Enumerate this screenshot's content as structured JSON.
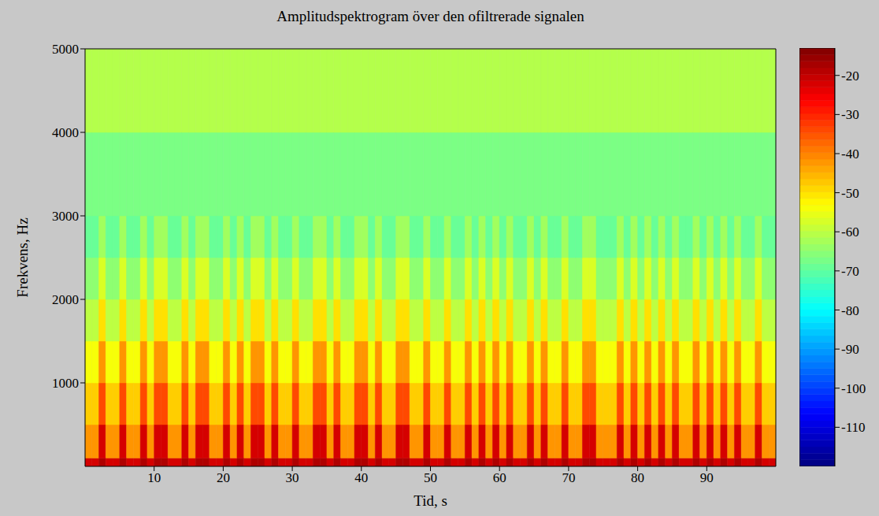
{
  "chart_data": {
    "type": "heatmap",
    "title": "Amplitudspektrogram över den ofiltrerade signalen",
    "x_label": "Tid, s",
    "y_label": "Frekvens, Hz",
    "xlim": [
      0,
      100
    ],
    "xticks": [
      10,
      20,
      30,
      40,
      50,
      60,
      70,
      80,
      90
    ],
    "ylim": [
      0,
      5000
    ],
    "yticks": [
      1000,
      2000,
      3000,
      4000,
      5000
    ],
    "grid": false,
    "x_bins": [
      0,
      1,
      2,
      3,
      4,
      5,
      6,
      7,
      8,
      9,
      10,
      11,
      12,
      13,
      14,
      15,
      16,
      17,
      18,
      19,
      20,
      21,
      22,
      23,
      24,
      25,
      26,
      27,
      28,
      29,
      30,
      31,
      32,
      33,
      34,
      35,
      36,
      37,
      38,
      39,
      40,
      41,
      42,
      43,
      44,
      45,
      46,
      47,
      48,
      49,
      50,
      51,
      52,
      53,
      54,
      55,
      56,
      57,
      58,
      59,
      60,
      61,
      62,
      63,
      64,
      65,
      66,
      67,
      68,
      69,
      70,
      71,
      72,
      73,
      74,
      75,
      76,
      77,
      78,
      79,
      80,
      81,
      82,
      83,
      84,
      85,
      86,
      87,
      88,
      89,
      90,
      91,
      92,
      93,
      94,
      95,
      96,
      97,
      98,
      99,
      100
    ],
    "y_bins": [
      0,
      100,
      500,
      1000,
      1500,
      2000,
      2500,
      3000,
      4000,
      5000
    ],
    "z": [
      [
        -22,
        -22,
        -18,
        -22,
        -22,
        -18,
        -22,
        -22,
        -18,
        -22,
        -18,
        -18,
        -22,
        -22,
        -18,
        -22,
        -18,
        -18,
        -22,
        -22,
        -18,
        -22,
        -18,
        -22,
        -18,
        -18,
        -22,
        -18,
        -22,
        -22,
        -18,
        -22,
        -22,
        -18,
        -18,
        -22,
        -18,
        -22,
        -22,
        -18,
        -18,
        -22,
        -18,
        -22,
        -22,
        -18,
        -18,
        -22,
        -22,
        -18,
        -22,
        -22,
        -18,
        -22,
        -22,
        -18,
        -22,
        -18,
        -22,
        -18,
        -22,
        -18,
        -22,
        -22,
        -18,
        -22,
        -18,
        -22,
        -22,
        -18,
        -22,
        -22,
        -18,
        -18,
        -22,
        -22,
        -22,
        -18,
        -22,
        -18,
        -22,
        -18,
        -22,
        -18,
        -22,
        -18,
        -22,
        -22,
        -18,
        -22,
        -18,
        -22,
        -18,
        -22,
        -18,
        -22,
        -22,
        -18,
        -22,
        -22
      ],
      [
        -42,
        -42,
        -22,
        -42,
        -42,
        -22,
        -42,
        -42,
        -22,
        -42,
        -22,
        -22,
        -42,
        -42,
        -22,
        -42,
        -22,
        -22,
        -42,
        -42,
        -22,
        -42,
        -22,
        -42,
        -22,
        -22,
        -42,
        -22,
        -42,
        -42,
        -22,
        -42,
        -42,
        -22,
        -22,
        -42,
        -22,
        -42,
        -42,
        -22,
        -22,
        -42,
        -22,
        -42,
        -42,
        -22,
        -22,
        -42,
        -42,
        -22,
        -42,
        -42,
        -22,
        -42,
        -42,
        -22,
        -42,
        -22,
        -42,
        -22,
        -42,
        -22,
        -42,
        -42,
        -22,
        -42,
        -22,
        -42,
        -42,
        -22,
        -42,
        -42,
        -22,
        -22,
        -42,
        -42,
        -42,
        -22,
        -42,
        -22,
        -42,
        -22,
        -42,
        -22,
        -42,
        -22,
        -42,
        -42,
        -22,
        -42,
        -22,
        -42,
        -22,
        -42,
        -22,
        -42,
        -42,
        -22,
        -42,
        -42
      ],
      [
        -48,
        -48,
        -34,
        -48,
        -48,
        -34,
        -48,
        -48,
        -34,
        -48,
        -34,
        -34,
        -48,
        -48,
        -34,
        -48,
        -34,
        -34,
        -48,
        -48,
        -34,
        -48,
        -34,
        -48,
        -34,
        -34,
        -48,
        -34,
        -48,
        -48,
        -34,
        -48,
        -48,
        -34,
        -34,
        -48,
        -34,
        -48,
        -48,
        -34,
        -34,
        -48,
        -34,
        -48,
        -48,
        -34,
        -34,
        -48,
        -48,
        -34,
        -48,
        -48,
        -34,
        -48,
        -48,
        -34,
        -48,
        -34,
        -48,
        -34,
        -48,
        -34,
        -48,
        -48,
        -34,
        -48,
        -34,
        -48,
        -48,
        -34,
        -48,
        -48,
        -34,
        -34,
        -48,
        -48,
        -48,
        -34,
        -48,
        -34,
        -48,
        -34,
        -48,
        -34,
        -48,
        -34,
        -48,
        -48,
        -34,
        -48,
        -34,
        -48,
        -34,
        -48,
        -34,
        -48,
        -48,
        -34,
        -48,
        -48
      ],
      [
        -54,
        -54,
        -42,
        -54,
        -54,
        -42,
        -54,
        -54,
        -42,
        -54,
        -42,
        -42,
        -54,
        -54,
        -42,
        -54,
        -42,
        -42,
        -54,
        -54,
        -42,
        -54,
        -42,
        -54,
        -42,
        -42,
        -54,
        -42,
        -54,
        -54,
        -42,
        -54,
        -54,
        -42,
        -42,
        -54,
        -42,
        -54,
        -54,
        -42,
        -42,
        -54,
        -42,
        -54,
        -54,
        -42,
        -42,
        -54,
        -54,
        -42,
        -54,
        -54,
        -42,
        -54,
        -54,
        -42,
        -54,
        -42,
        -54,
        -42,
        -54,
        -42,
        -54,
        -54,
        -42,
        -54,
        -42,
        -54,
        -54,
        -42,
        -54,
        -54,
        -42,
        -42,
        -54,
        -54,
        -54,
        -42,
        -54,
        -42,
        -54,
        -42,
        -54,
        -42,
        -54,
        -42,
        -54,
        -54,
        -42,
        -54,
        -42,
        -54,
        -42,
        -54,
        -42,
        -54,
        -54,
        -42,
        -54,
        -54
      ],
      [
        -60,
        -60,
        -50,
        -60,
        -60,
        -50,
        -60,
        -60,
        -50,
        -60,
        -50,
        -50,
        -60,
        -60,
        -50,
        -60,
        -50,
        -50,
        -60,
        -60,
        -50,
        -60,
        -50,
        -60,
        -50,
        -50,
        -60,
        -50,
        -60,
        -60,
        -50,
        -60,
        -60,
        -50,
        -50,
        -60,
        -50,
        -60,
        -60,
        -50,
        -50,
        -60,
        -50,
        -60,
        -60,
        -50,
        -50,
        -60,
        -60,
        -50,
        -60,
        -60,
        -50,
        -60,
        -60,
        -50,
        -60,
        -50,
        -60,
        -50,
        -60,
        -50,
        -60,
        -60,
        -50,
        -60,
        -50,
        -60,
        -60,
        -50,
        -60,
        -60,
        -50,
        -50,
        -60,
        -60,
        -60,
        -50,
        -60,
        -50,
        -60,
        -50,
        -60,
        -50,
        -60,
        -50,
        -60,
        -60,
        -50,
        -60,
        -50,
        -60,
        -50,
        -60,
        -50,
        -60,
        -60,
        -50,
        -60,
        -60
      ],
      [
        -65,
        -65,
        -57,
        -65,
        -65,
        -57,
        -65,
        -65,
        -57,
        -65,
        -57,
        -57,
        -65,
        -65,
        -57,
        -65,
        -57,
        -57,
        -65,
        -65,
        -57,
        -65,
        -57,
        -65,
        -57,
        -57,
        -65,
        -57,
        -65,
        -65,
        -57,
        -65,
        -65,
        -57,
        -57,
        -65,
        -57,
        -65,
        -65,
        -57,
        -57,
        -65,
        -57,
        -65,
        -65,
        -57,
        -57,
        -65,
        -65,
        -57,
        -65,
        -65,
        -57,
        -65,
        -65,
        -57,
        -65,
        -57,
        -65,
        -57,
        -65,
        -57,
        -65,
        -65,
        -57,
        -65,
        -57,
        -65,
        -65,
        -57,
        -65,
        -65,
        -57,
        -57,
        -65,
        -65,
        -65,
        -57,
        -65,
        -57,
        -65,
        -57,
        -65,
        -57,
        -65,
        -57,
        -65,
        -65,
        -57,
        -65,
        -57,
        -65,
        -57,
        -65,
        -57,
        -65,
        -65,
        -57,
        -65,
        -65
      ],
      [
        -69,
        -69,
        -63,
        -69,
        -69,
        -63,
        -69,
        -69,
        -63,
        -69,
        -63,
        -63,
        -69,
        -69,
        -63,
        -69,
        -63,
        -63,
        -69,
        -69,
        -63,
        -69,
        -63,
        -69,
        -63,
        -63,
        -69,
        -63,
        -69,
        -69,
        -63,
        -69,
        -69,
        -63,
        -63,
        -69,
        -63,
        -69,
        -69,
        -63,
        -63,
        -69,
        -63,
        -69,
        -69,
        -63,
        -63,
        -69,
        -69,
        -63,
        -69,
        -69,
        -63,
        -69,
        -69,
        -63,
        -69,
        -63,
        -69,
        -63,
        -69,
        -63,
        -69,
        -69,
        -63,
        -69,
        -63,
        -69,
        -69,
        -63,
        -69,
        -69,
        -63,
        -63,
        -69,
        -69,
        -69,
        -63,
        -69,
        -63,
        -69,
        -63,
        -69,
        -63,
        -69,
        -63,
        -69,
        -69,
        -63,
        -69,
        -63,
        -69,
        -63,
        -69,
        -63,
        -69,
        -69,
        -63,
        -69,
        -69
      ],
      [
        -67,
        -67,
        -67,
        -67,
        -67,
        -67,
        -67,
        -67,
        -67,
        -67,
        -67,
        -67,
        -67,
        -67,
        -67,
        -67,
        -67,
        -67,
        -67,
        -67,
        -67,
        -67,
        -67,
        -67,
        -67,
        -67,
        -67,
        -67,
        -67,
        -67,
        -67,
        -67,
        -67,
        -67,
        -67,
        -67,
        -67,
        -67,
        -67,
        -67,
        -67,
        -67,
        -67,
        -67,
        -67,
        -67,
        -67,
        -67,
        -67,
        -67,
        -67,
        -67,
        -67,
        -67,
        -67,
        -67,
        -67,
        -67,
        -67,
        -67,
        -67,
        -67,
        -67,
        -67,
        -67,
        -67,
        -67,
        -67,
        -67,
        -67,
        -67,
        -67,
        -67,
        -67,
        -67,
        -67,
        -67,
        -67,
        -67,
        -67,
        -67,
        -67,
        -67,
        -67,
        -67,
        -67,
        -67,
        -67,
        -67,
        -67,
        -67,
        -67,
        -67,
        -67,
        -67,
        -67,
        -67,
        -67,
        -67,
        -67
      ],
      [
        -61,
        -61,
        -61,
        -61,
        -61,
        -61,
        -61,
        -61,
        -61,
        -61,
        -61,
        -61,
        -61,
        -61,
        -61,
        -61,
        -61,
        -61,
        -61,
        -61,
        -61,
        -61,
        -61,
        -61,
        -61,
        -61,
        -61,
        -61,
        -61,
        -61,
        -61,
        -61,
        -61,
        -61,
        -61,
        -61,
        -61,
        -61,
        -61,
        -61,
        -61,
        -61,
        -61,
        -61,
        -61,
        -61,
        -61,
        -61,
        -61,
        -61,
        -61,
        -61,
        -61,
        -61,
        -61,
        -61,
        -61,
        -61,
        -61,
        -61,
        -61,
        -61,
        -61,
        -61,
        -61,
        -61,
        -61,
        -61,
        -61,
        -61,
        -61,
        -61,
        -61,
        -61,
        -61,
        -61,
        -61,
        -61,
        -61,
        -61,
        -61,
        -61,
        -61,
        -61,
        -61,
        -61,
        -61,
        -61,
        -61,
        -61,
        -61,
        -61,
        -61,
        -61,
        -61,
        -61,
        -61,
        -61,
        -61,
        -61
      ]
    ],
    "zlim": [
      -120,
      -13
    ],
    "zticks": [
      -110,
      -100,
      -90,
      -80,
      -70,
      -60,
      -50,
      -40,
      -30,
      -20
    ]
  }
}
